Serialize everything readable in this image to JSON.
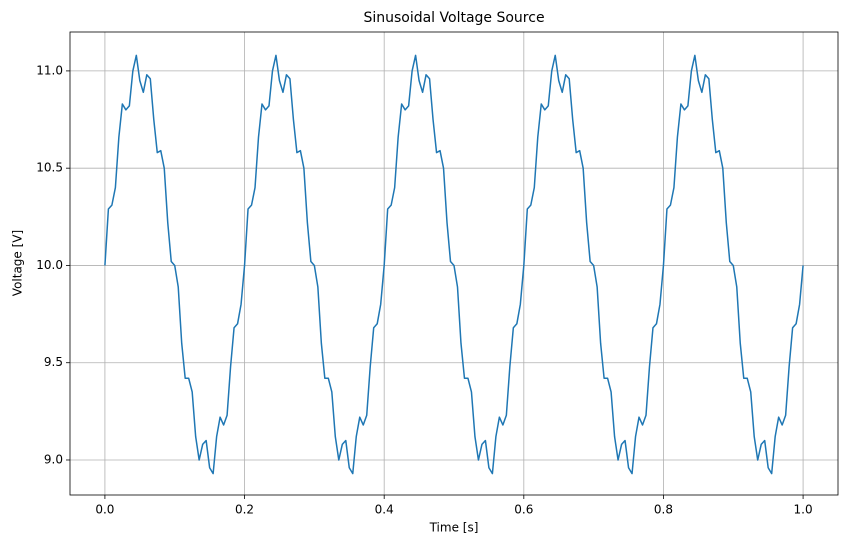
{
  "chart_data": {
    "type": "line",
    "title": "Sinusoidal Voltage Source",
    "xlabel": "Time [s]",
    "ylabel": "Voltage [V]",
    "grid": true,
    "xlim": [
      -0.05,
      1.05
    ],
    "ylim": [
      8.82,
      11.2
    ],
    "xticks": [
      {
        "value": 0,
        "label": "0.0"
      },
      {
        "value": 0.2,
        "label": "0.2"
      },
      {
        "value": 0.4,
        "label": "0.4"
      },
      {
        "value": 0.6,
        "label": "0.6"
      },
      {
        "value": 0.8,
        "label": "0.8"
      },
      {
        "value": 1,
        "label": "1.0"
      }
    ],
    "yticks": [
      {
        "value": 9,
        "label": "9.0"
      },
      {
        "value": 9.5,
        "label": "9.5"
      },
      {
        "value": 10,
        "label": "10.0"
      },
      {
        "value": 10.5,
        "label": "10.5"
      },
      {
        "value": 11,
        "label": "11.0"
      }
    ],
    "x": [
      0,
      0.005,
      0.01,
      0.015,
      0.02,
      0.025,
      0.03,
      0.035,
      0.04,
      0.045,
      0.05,
      0.055,
      0.06,
      0.065,
      0.07,
      0.075,
      0.08,
      0.085,
      0.09,
      0.095,
      0.1,
      0.105,
      0.11,
      0.115,
      0.12,
      0.125,
      0.13,
      0.135,
      0.14,
      0.145,
      0.15,
      0.155,
      0.16,
      0.165,
      0.17,
      0.175,
      0.18,
      0.185,
      0.19,
      0.195,
      0.2,
      0.205,
      0.21,
      0.215,
      0.22,
      0.225,
      0.23,
      0.235,
      0.24,
      0.245,
      0.25,
      0.255,
      0.26,
      0.265,
      0.27,
      0.275,
      0.28,
      0.285,
      0.29,
      0.295,
      0.3,
      0.305,
      0.31,
      0.315,
      0.32,
      0.325,
      0.33,
      0.335,
      0.34,
      0.345,
      0.35,
      0.355,
      0.36,
      0.365,
      0.37,
      0.375,
      0.38,
      0.385,
      0.39,
      0.395,
      0.4,
      0.405,
      0.41,
      0.415,
      0.42,
      0.425,
      0.43,
      0.435,
      0.44,
      0.445,
      0.45,
      0.455,
      0.46,
      0.465,
      0.47,
      0.475,
      0.48,
      0.485,
      0.49,
      0.495,
      0.5,
      0.505,
      0.51,
      0.515,
      0.52,
      0.525,
      0.53,
      0.535,
      0.54,
      0.545,
      0.55,
      0.555,
      0.56,
      0.565,
      0.57,
      0.575,
      0.58,
      0.585,
      0.59,
      0.595,
      0.6,
      0.605,
      0.61,
      0.615,
      0.62,
      0.625,
      0.63,
      0.635,
      0.64,
      0.645,
      0.65,
      0.655,
      0.66,
      0.665,
      0.67,
      0.675,
      0.68,
      0.685,
      0.69,
      0.695,
      0.7,
      0.705,
      0.71,
      0.715,
      0.72,
      0.725,
      0.73,
      0.735,
      0.74,
      0.745,
      0.75,
      0.755,
      0.76,
      0.765,
      0.77,
      0.775,
      0.78,
      0.785,
      0.79,
      0.795,
      0.8,
      0.805,
      0.81,
      0.815,
      0.82,
      0.825,
      0.83,
      0.835,
      0.84,
      0.845,
      0.85,
      0.855,
      0.86,
      0.865,
      0.87,
      0.875,
      0.88,
      0.885,
      0.89,
      0.895,
      0.9,
      0.905,
      0.91,
      0.915,
      0.92,
      0.925,
      0.93,
      0.935,
      0.94,
      0.945,
      0.95,
      0.955,
      0.96,
      0.965,
      0.97,
      0.975,
      0.98,
      0.985,
      0.99,
      0.995,
      1
    ],
    "series": [
      {
        "color": "#1f77b4",
        "values": [
          10.0,
          10.29,
          10.31,
          10.4,
          10.66,
          10.83,
          10.8,
          10.82,
          11.0,
          11.08,
          10.95,
          10.89,
          10.98,
          10.96,
          10.75,
          10.58,
          10.59,
          10.5,
          10.22,
          10.02,
          10.0,
          9.89,
          9.6,
          9.42,
          9.42,
          9.35,
          9.12,
          9.0,
          9.08,
          9.1,
          8.96,
          8.93,
          9.12,
          9.22,
          9.18,
          9.23,
          9.48,
          9.68,
          9.7,
          9.8,
          10.0,
          10.29,
          10.31,
          10.4,
          10.66,
          10.83,
          10.8,
          10.82,
          11.0,
          11.08,
          10.95,
          10.89,
          10.98,
          10.96,
          10.75,
          10.58,
          10.59,
          10.5,
          10.22,
          10.02,
          10.0,
          9.89,
          9.6,
          9.42,
          9.42,
          9.35,
          9.12,
          9.0,
          9.08,
          9.1,
          8.96,
          8.93,
          9.12,
          9.22,
          9.18,
          9.23,
          9.48,
          9.68,
          9.7,
          9.8,
          10.0,
          10.29,
          10.31,
          10.4,
          10.66,
          10.83,
          10.8,
          10.82,
          11.0,
          11.08,
          10.95,
          10.89,
          10.98,
          10.96,
          10.75,
          10.58,
          10.59,
          10.5,
          10.22,
          10.02,
          10.0,
          9.89,
          9.6,
          9.42,
          9.42,
          9.35,
          9.12,
          9.0,
          9.08,
          9.1,
          8.96,
          8.93,
          9.12,
          9.22,
          9.18,
          9.23,
          9.48,
          9.68,
          9.7,
          9.8,
          10.0,
          10.29,
          10.31,
          10.4,
          10.66,
          10.83,
          10.8,
          10.82,
          11.0,
          11.08,
          10.95,
          10.89,
          10.98,
          10.96,
          10.75,
          10.58,
          10.59,
          10.5,
          10.22,
          10.02,
          10.0,
          9.89,
          9.6,
          9.42,
          9.42,
          9.35,
          9.12,
          9.0,
          9.08,
          9.1,
          8.96,
          8.93,
          9.12,
          9.22,
          9.18,
          9.23,
          9.48,
          9.68,
          9.7,
          9.8,
          10.0,
          10.29,
          10.31,
          10.4,
          10.66,
          10.83,
          10.8,
          10.82,
          11.0,
          11.08,
          10.95,
          10.89,
          10.98,
          10.96,
          10.75,
          10.58,
          10.59,
          10.5,
          10.22,
          10.02,
          10.0,
          9.89,
          9.6,
          9.42,
          9.42,
          9.35,
          9.12,
          9.0,
          9.08,
          9.1,
          8.96,
          8.93,
          9.12,
          9.22,
          9.18,
          9.23,
          9.48,
          9.68,
          9.7,
          9.8,
          10.0
        ]
      }
    ]
  }
}
